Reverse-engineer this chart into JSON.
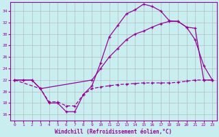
{
  "xlabel": "Windchill (Refroidissement éolien,°C)",
  "background_color": "#c8eef0",
  "grid_color": "#b0b0b0",
  "line_color": "#990099",
  "xlim": [
    -0.5,
    23.5
  ],
  "ylim": [
    15.0,
    35.5
  ],
  "yticks": [
    16,
    18,
    20,
    22,
    24,
    26,
    28,
    30,
    32,
    34
  ],
  "xticks": [
    0,
    1,
    2,
    3,
    4,
    5,
    6,
    7,
    8,
    9,
    10,
    11,
    12,
    13,
    14,
    15,
    16,
    17,
    18,
    19,
    20,
    21,
    22,
    23
  ],
  "line1_x": [
    0,
    1,
    2,
    3,
    4,
    5,
    6,
    7,
    8,
    9,
    10,
    11,
    12,
    13,
    14,
    15,
    16,
    17,
    18,
    19,
    20,
    21,
    22,
    23
  ],
  "line1_y": [
    22,
    22,
    22,
    20.5,
    18,
    18,
    16.5,
    16.5,
    19.5,
    21,
    25,
    29.5,
    31.5,
    33.5,
    34.2,
    35.2,
    34.8,
    34.0,
    32.3,
    32.2,
    31.2,
    29.0,
    24.5,
    22.0
  ],
  "line2_x": [
    0,
    1,
    2,
    3,
    9,
    10,
    11,
    12,
    13,
    14,
    15,
    16,
    17,
    18,
    19,
    20,
    21,
    22,
    23
  ],
  "line2_y": [
    22,
    22,
    22,
    20.5,
    22,
    24,
    26,
    27.5,
    29,
    30,
    30.5,
    31.2,
    31.8,
    32.2,
    32.2,
    31.2,
    31.0,
    22.0,
    22.0
  ],
  "line3_x": [
    0,
    3,
    4,
    5,
    6,
    7,
    8,
    9,
    10,
    11,
    12,
    13,
    14,
    15,
    16,
    17,
    18,
    19,
    20,
    21,
    22,
    23
  ],
  "line3_y": [
    22,
    20.5,
    18.2,
    18.2,
    17.5,
    17.5,
    19.5,
    20.5,
    20.8,
    21.0,
    21.2,
    21.3,
    21.4,
    21.5,
    21.5,
    21.5,
    21.5,
    21.6,
    21.8,
    22.0,
    22.0,
    22.0
  ]
}
